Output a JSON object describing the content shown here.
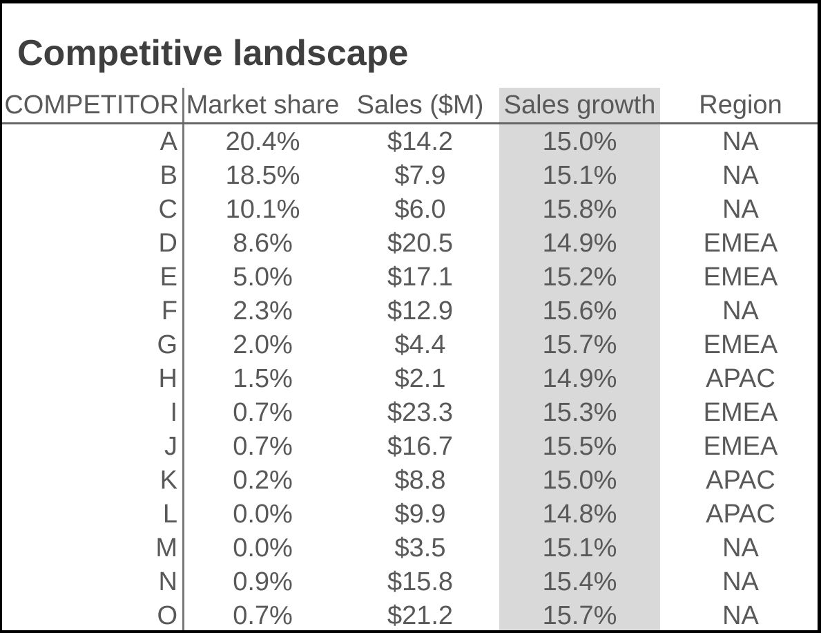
{
  "title": "Competitive landscape",
  "colors": {
    "highlight_band": "#d9d9d9",
    "body_text": "#595959",
    "title_text": "#3f3f3f",
    "divider_line": "#787878",
    "header_underline": "#666666",
    "frame": "#000000"
  },
  "chart_data": {
    "type": "table",
    "title": "Competitive landscape",
    "columns": [
      "COMPETITOR",
      "Market share",
      "Sales ($M)",
      "Sales growth",
      "Region"
    ],
    "highlighted_column": "Sales growth",
    "rows": [
      [
        "A",
        "20.4%",
        "$14.2",
        "15.0%",
        "NA"
      ],
      [
        "B",
        "18.5%",
        "$7.9",
        "15.1%",
        "NA"
      ],
      [
        "C",
        "10.1%",
        "$6.0",
        "15.8%",
        "NA"
      ],
      [
        "D",
        "8.6%",
        "$20.5",
        "14.9%",
        "EMEA"
      ],
      [
        "E",
        "5.0%",
        "$17.1",
        "15.2%",
        "EMEA"
      ],
      [
        "F",
        "2.3%",
        "$12.9",
        "15.6%",
        "NA"
      ],
      [
        "G",
        "2.0%",
        "$4.4",
        "15.7%",
        "EMEA"
      ],
      [
        "H",
        "1.5%",
        "$2.1",
        "14.9%",
        "APAC"
      ],
      [
        "I",
        "0.7%",
        "$23.3",
        "15.3%",
        "EMEA"
      ],
      [
        "J",
        "0.7%",
        "$16.7",
        "15.5%",
        "EMEA"
      ],
      [
        "K",
        "0.2%",
        "$8.8",
        "15.0%",
        "APAC"
      ],
      [
        "L",
        "0.0%",
        "$9.9",
        "14.8%",
        "APAC"
      ],
      [
        "M",
        "0.0%",
        "$3.5",
        "15.1%",
        "NA"
      ],
      [
        "N",
        "0.9%",
        "$15.8",
        "15.4%",
        "NA"
      ],
      [
        "O",
        "0.7%",
        "$21.2",
        "15.7%",
        "NA"
      ]
    ]
  }
}
